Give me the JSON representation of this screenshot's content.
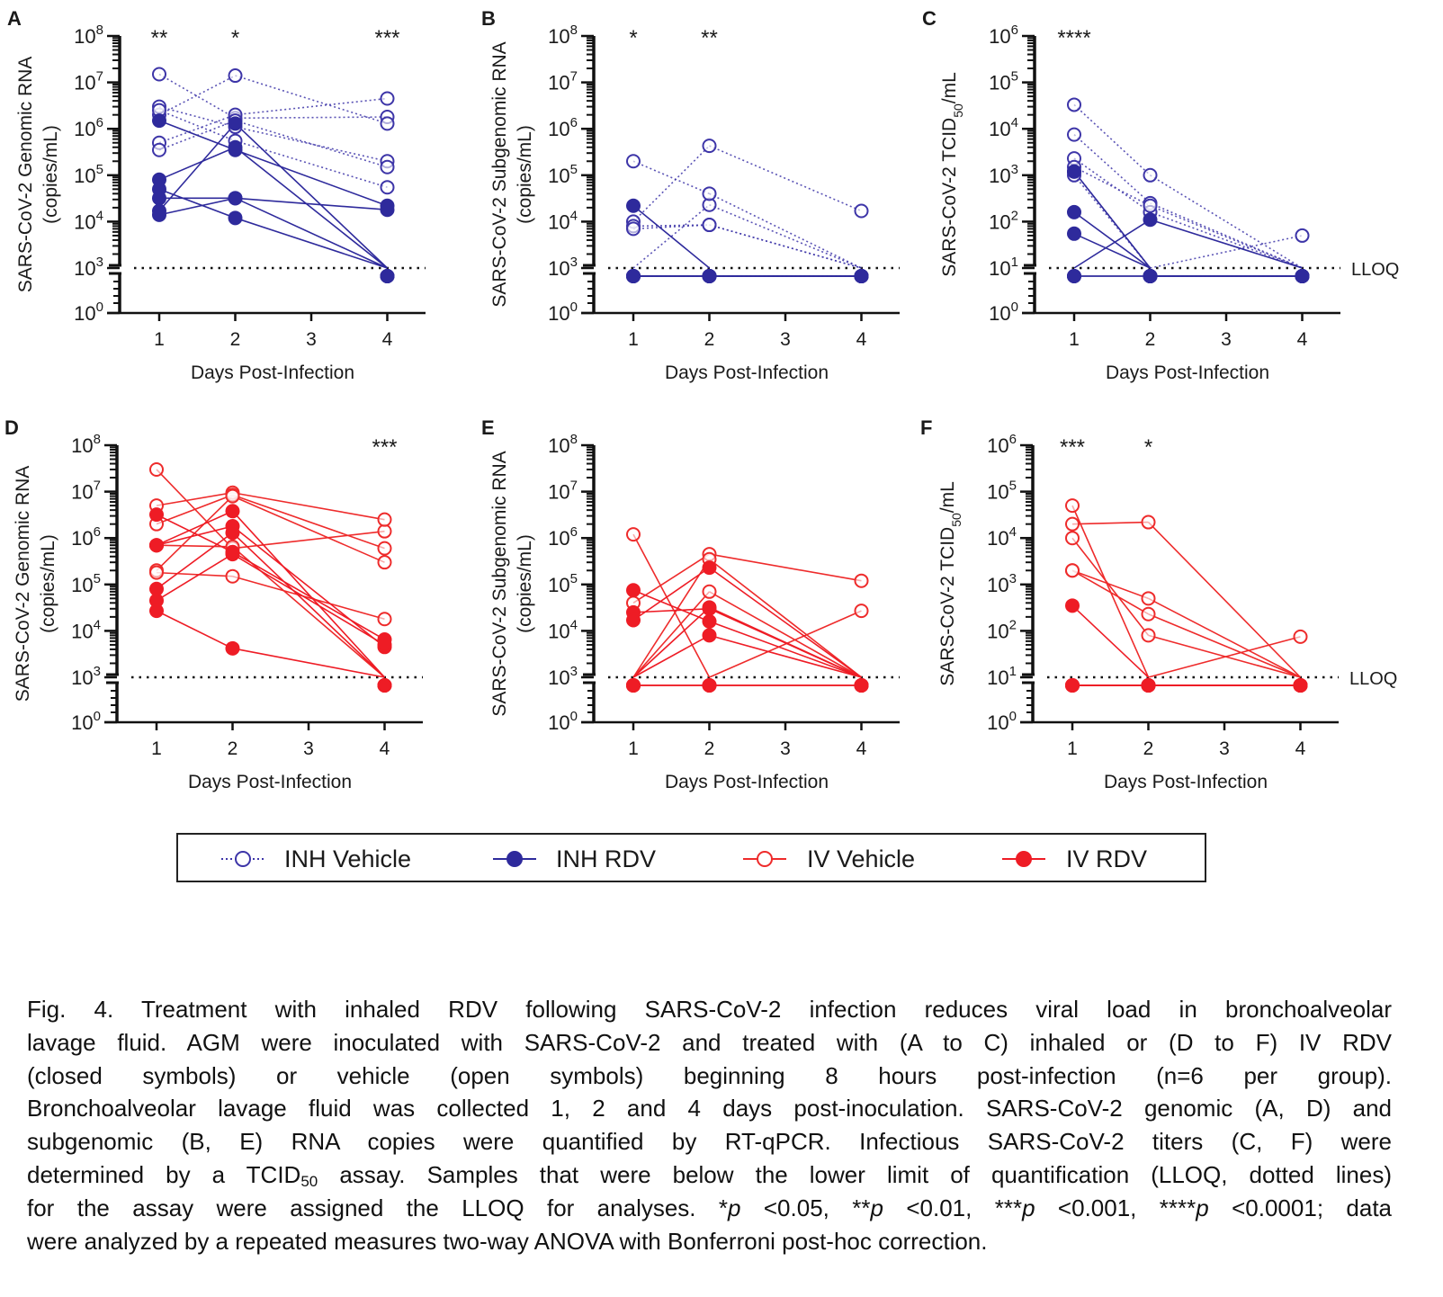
{
  "legend": {
    "items": [
      {
        "name": "INH Vehicle",
        "color": "#3d35a8",
        "marker": "open",
        "line": "dotted"
      },
      {
        "name": "INH RDV",
        "color": "#2e2a9c",
        "marker": "filled",
        "line": "solid"
      },
      {
        "name": "IV Vehicle",
        "color": "#ee2b2b",
        "marker": "open",
        "line": "solid"
      },
      {
        "name": "IV RDV",
        "color": "#ee1c25",
        "marker": "filled",
        "line": "solid"
      }
    ]
  },
  "chart_data": [
    {
      "panel": "A",
      "type": "line",
      "y_scale": "log",
      "axis_break": true,
      "ylabel": [
        [
          [
            "SARS-CoV-2 Genomic RNA",
            ""
          ]
        ],
        [
          [
            "(copies/mL)",
            ""
          ]
        ]
      ],
      "xlabel": "Days Post-Infection",
      "x": [
        1,
        2,
        4
      ],
      "xticks": [
        1,
        2,
        3,
        4
      ],
      "ylim": [
        1,
        100000000
      ],
      "yticks": [
        1,
        1000,
        10000,
        100000,
        1000000,
        10000000,
        100000000
      ],
      "lloq": 1000,
      "lloq_label": "",
      "significance": [
        {
          "day": 1,
          "label": "**"
        },
        {
          "day": 2,
          "label": "*"
        },
        {
          "day": 4,
          "label": "***"
        }
      ],
      "series": [
        {
          "name": "INH Vehicle",
          "values": [
            [
              15000000,
              1700000,
              1800000
            ],
            [
              2000000,
              14000000,
              1300000
            ],
            [
              3000000,
              1100000,
              200000
            ],
            [
              2500000,
              550000,
              55000
            ],
            [
              500000,
              2000000,
              4500000
            ],
            [
              350000,
              1500000,
              150000
            ]
          ]
        },
        {
          "name": "INH RDV",
          "values": [
            [
              1500000,
              350000,
              22000
            ],
            [
              80000,
              400000,
              "<LLOQ"
            ],
            [
              50000,
              12000,
              "<LLOQ"
            ],
            [
              32000,
              32000,
              18000
            ],
            [
              17000,
              1300000,
              "<LLOQ"
            ],
            [
              14000,
              32000,
              "<LLOQ"
            ]
          ]
        }
      ]
    },
    {
      "panel": "B",
      "type": "line",
      "y_scale": "log",
      "axis_break": true,
      "ylabel": [
        [
          [
            "SARS-CoV-2 Subgenomic RNA",
            ""
          ]
        ],
        [
          [
            "(copies/mL)",
            ""
          ]
        ]
      ],
      "xlabel": "Days Post-Infection",
      "x": [
        1,
        2,
        4
      ],
      "xticks": [
        1,
        2,
        3,
        4
      ],
      "ylim": [
        1,
        100000000
      ],
      "yticks": [
        1,
        1000,
        10000,
        100000,
        1000000,
        10000000,
        100000000
      ],
      "lloq": 1000,
      "lloq_label": "",
      "significance": [
        {
          "day": 1,
          "label": "*"
        },
        {
          "day": 2,
          "label": "**"
        }
      ],
      "series": [
        {
          "name": "INH Vehicle",
          "values": [
            [
              10000,
              430000,
              17000
            ],
            [
              "<LLOQ",
              23000,
              "<LLOQ"
            ],
            [
              200000,
              40000,
              "<LLOQ"
            ],
            [
              8000,
              8500,
              "<LLOQ"
            ],
            [
              7000,
              8500,
              "<LLOQ"
            ],
            [
              "<LLOQ",
              "<LLOQ",
              "<LLOQ"
            ]
          ]
        },
        {
          "name": "INH RDV",
          "values": [
            [
              22000,
              "<LLOQ",
              "<LLOQ"
            ],
            [
              "<LLOQ",
              "<LLOQ",
              "<LLOQ"
            ],
            [
              "<LLOQ",
              "<LLOQ",
              "<LLOQ"
            ],
            [
              "<LLOQ",
              "<LLOQ",
              "<LLOQ"
            ],
            [
              "<LLOQ",
              "<LLOQ",
              "<LLOQ"
            ],
            [
              "<LLOQ",
              "<LLOQ",
              "<LLOQ"
            ]
          ]
        }
      ]
    },
    {
      "panel": "C",
      "type": "line",
      "y_scale": "log",
      "axis_break": true,
      "ylabel": [
        [
          [
            "SARS-CoV-2 TCID",
            ""
          ],
          [
            "50",
            "sub"
          ],
          [
            "/mL",
            ""
          ]
        ]
      ],
      "xlabel": "Days Post-Infection",
      "x": [
        1,
        2,
        4
      ],
      "xticks": [
        1,
        2,
        3,
        4
      ],
      "ylim": [
        1,
        1000000
      ],
      "yticks": [
        1,
        10,
        100,
        1000,
        10000,
        100000,
        1000000
      ],
      "lloq": 10,
      "lloq_label": "LLOQ",
      "significance": [
        {
          "day": 1,
          "label": "****"
        }
      ],
      "series": [
        {
          "name": "INH Vehicle",
          "values": [
            [
              33000,
              1000,
              "<LLOQ"
            ],
            [
              7500,
              250,
              "<LLOQ"
            ],
            [
              2300,
              160,
              "<LLOQ"
            ],
            [
              1500,
              220,
              "<LLOQ"
            ],
            [
              1000,
              "<LLOQ",
              50
            ],
            [
              1200,
              "<LLOQ",
              "<LLOQ"
            ]
          ]
        },
        {
          "name": "INH RDV",
          "values": [
            [
              1200,
              "<LLOQ",
              "<LLOQ"
            ],
            [
              160,
              "<LLOQ",
              "<LLOQ"
            ],
            [
              55,
              "<LLOQ",
              "<LLOQ"
            ],
            [
              "<LLOQ",
              110,
              "<LLOQ"
            ],
            [
              "<LLOQ",
              "<LLOQ",
              "<LLOQ"
            ],
            [
              "<LLOQ",
              "<LLOQ",
              "<LLOQ"
            ]
          ]
        }
      ]
    },
    {
      "panel": "D",
      "type": "line",
      "y_scale": "log",
      "axis_break": true,
      "ylabel": [
        [
          [
            "SARS-CoV-2 Genomic RNA",
            ""
          ]
        ],
        [
          [
            "(copies/mL)",
            ""
          ]
        ]
      ],
      "xlabel": "Days Post-Infection",
      "x": [
        1,
        2,
        4
      ],
      "xticks": [
        1,
        2,
        3,
        4
      ],
      "ylim": [
        1,
        100000000
      ],
      "yticks": [
        1,
        1000,
        10000,
        100000,
        1000000,
        10000000,
        100000000
      ],
      "lloq": 1000,
      "lloq_label": "",
      "significance": [
        {
          "day": 4,
          "label": "***"
        }
      ],
      "series": [
        {
          "name": "IV Vehicle",
          "values": [
            [
              30000000,
              600000,
              1400000
            ],
            [
              5000000,
              9500000,
              2500000
            ],
            [
              2000000,
              8500000,
              600000
            ],
            [
              200000,
              8000000,
              300000
            ],
            [
              180000,
              150000,
              18000
            ],
            [
              700000,
              650000,
              "<LLOQ"
            ]
          ]
        },
        {
          "name": "IV RDV",
          "values": [
            [
              3200000,
              500000,
              6500
            ],
            [
              700000,
              3800000,
              "<LLOQ"
            ],
            [
              700000,
              1800000,
              4500
            ],
            [
              80000,
              1300000,
              "<LLOQ"
            ],
            [
              45000,
              450000,
              5000
            ],
            [
              27000,
              4200,
              "<LLOQ"
            ]
          ]
        }
      ]
    },
    {
      "panel": "E",
      "type": "line",
      "y_scale": "log",
      "axis_break": true,
      "ylabel": [
        [
          [
            "SARS-CoV-2 Subgenomic RNA",
            ""
          ]
        ],
        [
          [
            "(copies/mL)",
            ""
          ]
        ]
      ],
      "xlabel": "Days Post-Infection",
      "x": [
        1,
        2,
        4
      ],
      "xticks": [
        1,
        2,
        3,
        4
      ],
      "ylim": [
        1,
        100000000
      ],
      "yticks": [
        1,
        1000,
        10000,
        100000,
        1000000,
        10000000,
        100000000
      ],
      "lloq": 1000,
      "lloq_label": "",
      "significance": [],
      "series": [
        {
          "name": "IV Vehicle",
          "values": [
            [
              1200000,
              "<LLOQ",
              27000
            ],
            [
              40000,
              450000,
              120000
            ],
            [
              "<LLOQ",
              350000,
              "<LLOQ"
            ],
            [
              "<LLOQ",
              70000,
              "<LLOQ"
            ],
            [
              "<LLOQ",
              "<LLOQ",
              "<LLOQ"
            ],
            [
              "<LLOQ",
              "<LLOQ",
              "<LLOQ"
            ]
          ]
        },
        {
          "name": "IV RDV",
          "values": [
            [
              75000,
              16000,
              "<LLOQ"
            ],
            [
              25000,
              30000,
              "<LLOQ"
            ],
            [
              17000,
              230000,
              "<LLOQ"
            ],
            [
              "<LLOQ",
              32000,
              "<LLOQ"
            ],
            [
              "<LLOQ",
              8000,
              "<LLOQ"
            ],
            [
              "<LLOQ",
              "<LLOQ",
              "<LLOQ"
            ]
          ]
        }
      ]
    },
    {
      "panel": "F",
      "type": "line",
      "y_scale": "log",
      "axis_break": true,
      "ylabel": [
        [
          [
            "SARS-CoV-2 TCID",
            ""
          ],
          [
            "50",
            "sub"
          ],
          [
            "/mL",
            ""
          ]
        ]
      ],
      "xlabel": "Days Post-Infection",
      "x": [
        1,
        2,
        4
      ],
      "xticks": [
        1,
        2,
        3,
        4
      ],
      "ylim": [
        1,
        1000000
      ],
      "yticks": [
        1,
        10,
        100,
        1000,
        10000,
        100000,
        1000000
      ],
      "lloq": 10,
      "lloq_label": "LLOQ",
      "significance": [
        {
          "day": 1,
          "label": "***"
        },
        {
          "day": 2,
          "label": "*"
        }
      ],
      "series": [
        {
          "name": "IV Vehicle",
          "values": [
            [
              50000,
              "<LLOQ",
              "<LLOQ"
            ],
            [
              20000,
              22000,
              "<LLOQ"
            ],
            [
              10000,
              80,
              "<LLOQ"
            ],
            [
              2000,
              500,
              "<LLOQ"
            ],
            [
              2000,
              230,
              "<LLOQ"
            ],
            [
              "<LLOQ",
              "<LLOQ",
              75
            ]
          ]
        },
        {
          "name": "IV RDV",
          "values": [
            [
              350,
              "<LLOQ",
              "<LLOQ"
            ],
            [
              "<LLOQ",
              "<LLOQ",
              "<LLOQ"
            ],
            [
              "<LLOQ",
              "<LLOQ",
              "<LLOQ"
            ],
            [
              "<LLOQ",
              "<LLOQ",
              "<LLOQ"
            ],
            [
              "<LLOQ",
              "<LLOQ",
              "<LLOQ"
            ],
            [
              "<LLOQ",
              "<LLOQ",
              "<LLOQ"
            ]
          ]
        }
      ]
    }
  ],
  "caption": {
    "lines": [
      [
        [
          "Fig. 4. Treatment with inhaled RDV following SARS-CoV-2 infection reduces viral load in bronchoalveolar",
          ""
        ]
      ],
      [
        [
          "lavage fluid. AGM were inoculated with SARS-CoV-2 and treated with (A to C) inhaled or (D to F) IV RDV",
          ""
        ]
      ],
      [
        [
          "(closed symbols) or vehicle (open symbols) beginning 8 hours post-infection (n=6 per group).",
          ""
        ]
      ],
      [
        [
          "Bronchoalveolar lavage fluid was collected 1, 2 and 4 days post-inoculation. SARS-CoV-2 genomic (A, D) and",
          ""
        ]
      ],
      [
        [
          "subgenomic (B, E) RNA copies were quantified by RT-qPCR. Infectious SARS-CoV-2 titers (C, F) were",
          ""
        ]
      ],
      [
        [
          "determined by a TCID",
          ""
        ],
        [
          "50",
          "sub"
        ],
        [
          " assay. Samples that were below the lower limit of quantification (LLOQ, dotted lines)",
          ""
        ]
      ],
      [
        [
          "for the assay were assigned the LLOQ for analyses. *",
          ""
        ],
        [
          "p",
          "it"
        ],
        [
          " <0.05, **",
          ""
        ],
        [
          "p",
          "it"
        ],
        [
          " <0.01, ***",
          ""
        ],
        [
          "p",
          "it"
        ],
        [
          " <0.001, ****",
          ""
        ],
        [
          "p",
          "it"
        ],
        [
          " <0.0001; data",
          ""
        ]
      ],
      [
        [
          "were analyzed by a repeated measures two-way ANOVA with Bonferroni post-hoc correction.",
          ""
        ]
      ]
    ]
  }
}
